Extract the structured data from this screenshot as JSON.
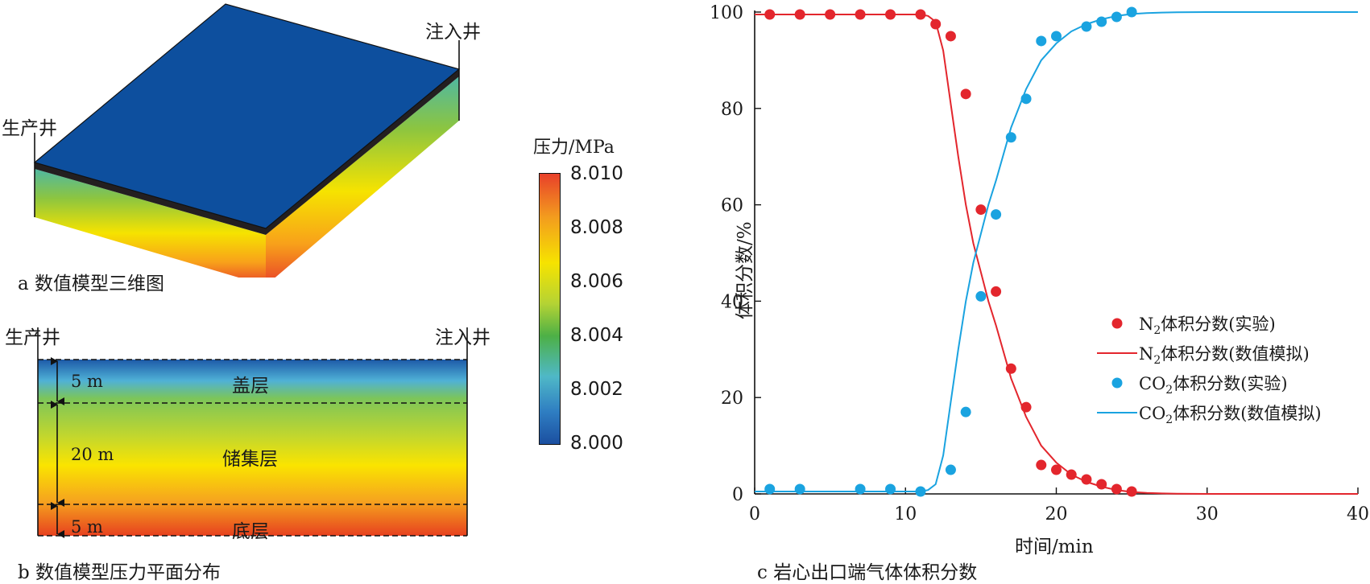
{
  "panel_a": {
    "caption": "a 数值模型三维图",
    "producer_well": "生产井",
    "injector_well": "注入井"
  },
  "panel_b": {
    "caption": "b 数值模型压力平面分布",
    "producer_well": "生产井",
    "injector_well": "注入井",
    "layers": [
      {
        "name": "盖层",
        "thickness": "5 m"
      },
      {
        "name": "储集层",
        "thickness": "20 m"
      },
      {
        "name": "底层",
        "thickness": "5 m"
      }
    ]
  },
  "colorbar": {
    "title": "压力/MPa",
    "ticks": [
      "8.010",
      "8.008",
      "8.006",
      "8.004",
      "8.002",
      "8.000"
    ],
    "colors": {
      "low": "#1b4fa0",
      "mid": "#4db046",
      "high": "#e8402a"
    }
  },
  "panel_c": {
    "caption": "c 岩心出口端气体体积分数"
  },
  "chart_data": {
    "type": "scatter",
    "title": "",
    "xlabel": "时间/min",
    "ylabel": "体积分数/%",
    "xlim": [
      0,
      40
    ],
    "ylim": [
      0,
      100
    ],
    "xticks": [
      0,
      10,
      20,
      30,
      40
    ],
    "yticks": [
      0,
      20,
      40,
      60,
      80,
      100
    ],
    "legend_position": "center-right",
    "series": [
      {
        "name": "N2体积分数(实验)",
        "legend_prefix": "N",
        "legend_sub": "2",
        "legend_suffix": "体积分数(实验)",
        "kind": "scatter",
        "color": "#e3262d",
        "x": [
          1,
          3,
          5,
          7,
          9,
          11,
          12,
          13,
          14,
          15,
          16,
          17,
          18,
          19,
          20,
          21,
          22,
          23,
          24,
          25
        ],
        "y": [
          99.5,
          99.5,
          99.5,
          99.5,
          99.5,
          99.5,
          97.5,
          95,
          83,
          59,
          42,
          26,
          18,
          6,
          5,
          4,
          3,
          2,
          1,
          0.5
        ]
      },
      {
        "name": "N2体积分数(数值模拟)",
        "legend_prefix": "N",
        "legend_sub": "2",
        "legend_suffix": "体积分数(数值模拟)",
        "kind": "line",
        "color": "#e3262d",
        "x": [
          0,
          11,
          11.5,
          12,
          12.5,
          13,
          13.5,
          14,
          14.5,
          15,
          15.5,
          16,
          17,
          18,
          19,
          20,
          21,
          22,
          23,
          24,
          25,
          26,
          27,
          28,
          30,
          35,
          40
        ],
        "y": [
          99.5,
          99.5,
          99.2,
          98,
          92,
          81,
          70,
          60,
          52,
          46,
          40,
          35,
          24,
          16,
          10,
          6.5,
          4,
          2.5,
          1.5,
          0.8,
          0.4,
          0.2,
          0.1,
          0.05,
          0,
          0,
          0
        ]
      },
      {
        "name": "CO2体积分数(实验)",
        "legend_prefix": "CO",
        "legend_sub": "2",
        "legend_suffix": "体积分数(实验)",
        "kind": "scatter",
        "color": "#1aa3e0",
        "x": [
          1,
          3,
          7,
          9,
          11,
          13,
          14,
          15,
          16,
          17,
          18,
          19,
          20,
          22,
          23,
          24,
          25
        ],
        "y": [
          1,
          1,
          1,
          1,
          0.5,
          5,
          17,
          41,
          58,
          74,
          82,
          94,
          95,
          97,
          98,
          99,
          100
        ]
      },
      {
        "name": "CO2体积分数(数值模拟)",
        "legend_prefix": "CO",
        "legend_sub": "2",
        "legend_suffix": "体积分数(数值模拟)",
        "kind": "line",
        "color": "#1aa3e0",
        "x": [
          0,
          11,
          11.5,
          12,
          12.5,
          13,
          13.5,
          14,
          14.5,
          15,
          15.5,
          16,
          17,
          18,
          19,
          20,
          21,
          22,
          23,
          24,
          25,
          26,
          27,
          28,
          30,
          35,
          40
        ],
        "y": [
          0.5,
          0.5,
          0.8,
          2,
          8,
          19,
          30,
          40,
          48,
          54,
          60,
          65,
          76,
          84,
          90,
          93.5,
          96,
          97.5,
          98.5,
          99.2,
          99.6,
          99.8,
          99.9,
          99.95,
          100,
          100,
          100
        ]
      }
    ]
  }
}
